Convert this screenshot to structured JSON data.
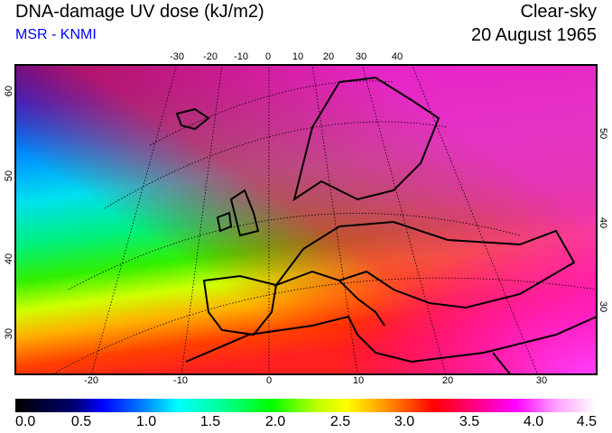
{
  "header": {
    "title": "DNA-damage UV dose (kJ/m2)",
    "subtitle": "MSR - KNMI",
    "sky": "Clear-sky",
    "date": "20 August 1965"
  },
  "axes": {
    "top_lon": [
      "-30",
      "-20",
      "-10",
      "0",
      "10",
      "20",
      "30",
      "40"
    ],
    "bottom_lon": [
      "-20",
      "-10",
      "0",
      "10",
      "20",
      "30"
    ],
    "left_lat": [
      "60",
      "50",
      "40",
      "30"
    ],
    "right_lat": [
      "50",
      "40",
      "30"
    ]
  },
  "colorbar": {
    "labels": [
      "0.0",
      "0.5",
      "1.0",
      "1.5",
      "2.0",
      "2.5",
      "3.0",
      "3.5",
      "4.0",
      "4.5"
    ],
    "min": 0.0,
    "max": 4.5,
    "unit": "kJ/m2"
  }
}
